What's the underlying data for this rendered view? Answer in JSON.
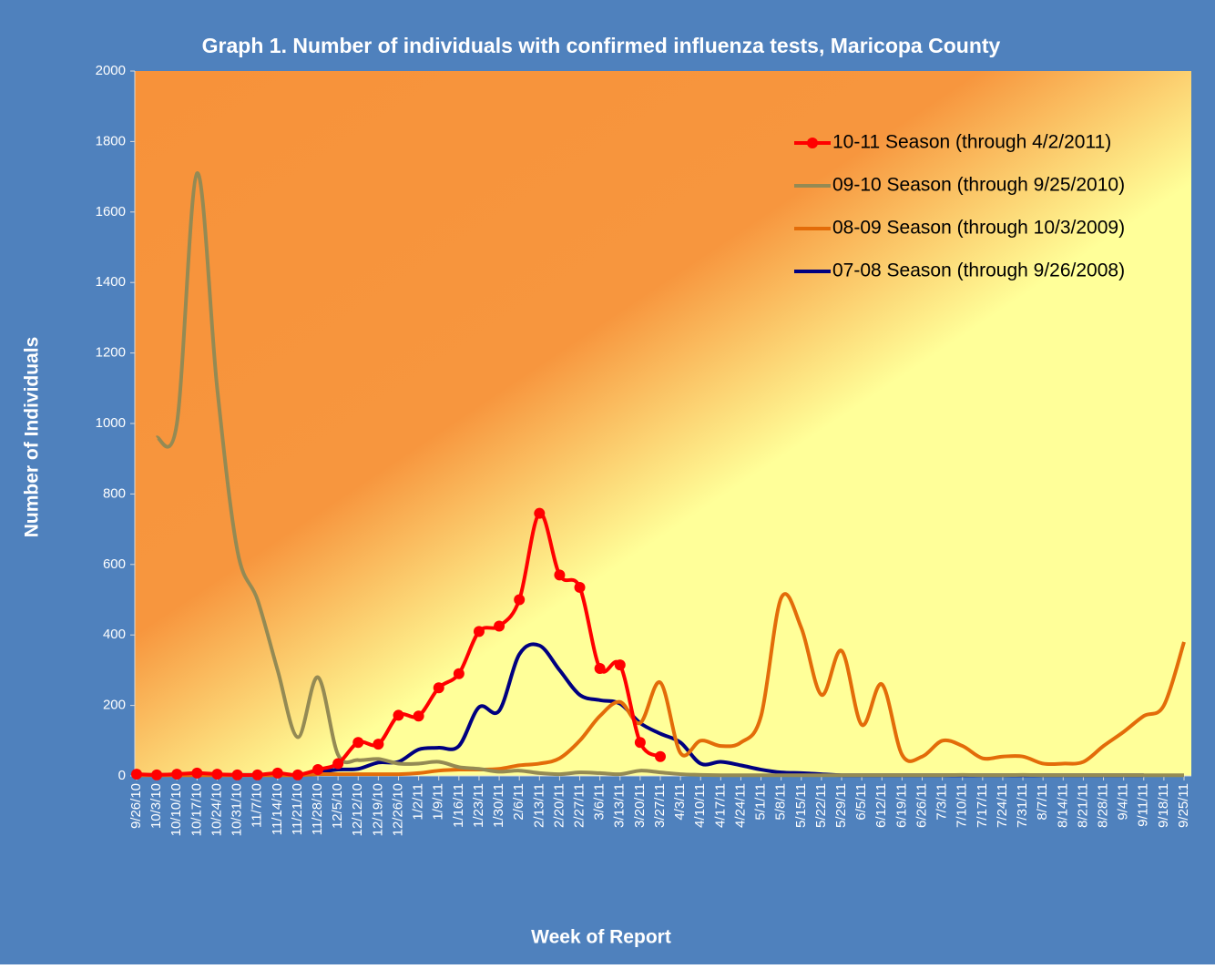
{
  "chart_data": {
    "type": "line",
    "title": "Graph 1. Number of individuals with confirmed influenza tests, Maricopa County",
    "x_label": "Week of Report",
    "y_label": "Number of Individuals",
    "categories": [
      "9/26/10",
      "10/3/10",
      "10/10/10",
      "10/17/10",
      "10/24/10",
      "10/31/10",
      "11/7/10",
      "11/14/10",
      "11/21/10",
      "11/28/10",
      "12/5/10",
      "12/12/10",
      "12/19/10",
      "12/26/10",
      "1/2/11",
      "1/9/11",
      "1/16/11",
      "1/23/11",
      "1/30/11",
      "2/6/11",
      "2/13/11",
      "2/20/11",
      "2/27/11",
      "3/6/11",
      "3/13/11",
      "3/20/11",
      "3/27/11",
      "4/3/11",
      "4/10/11",
      "4/17/11",
      "4/24/11",
      "5/1/11",
      "5/8/11",
      "5/15/11",
      "5/22/11",
      "5/29/11",
      "6/5/11",
      "6/12/11",
      "6/19/11",
      "6/26/11",
      "7/3/11",
      "7/10/11",
      "7/17/11",
      "7/24/11",
      "7/31/11",
      "8/7/11",
      "8/14/11",
      "8/21/11",
      "8/28/11",
      "9/4/11",
      "9/11/11",
      "9/18/11",
      "9/25/11"
    ],
    "series": [
      {
        "name": "10-11 Season (through 4/2/2011)",
        "color": "#ff0000",
        "markers": true,
        "values": [
          5,
          3,
          5,
          8,
          5,
          3,
          3,
          8,
          3,
          18,
          35,
          95,
          90,
          172,
          170,
          250,
          290,
          410,
          425,
          500,
          745,
          570,
          535,
          305,
          315,
          95,
          55,
          null,
          null,
          null,
          null,
          null,
          null,
          null,
          null,
          null,
          null,
          null,
          null,
          null,
          null,
          null,
          null,
          null,
          null,
          null,
          null,
          null,
          null,
          null,
          null,
          null,
          null
        ]
      },
      {
        "name": "09-10 Season (through 9/25/2010)",
        "color": "#948a54",
        "markers": false,
        "values": [
          null,
          960,
          1000,
          1710,
          1100,
          640,
          500,
          300,
          110,
          280,
          60,
          45,
          48,
          35,
          35,
          40,
          25,
          20,
          12,
          15,
          8,
          5,
          10,
          8,
          5,
          15,
          10,
          5,
          3,
          2,
          2,
          2,
          2,
          2,
          2,
          2,
          2,
          2,
          2,
          2,
          2,
          3,
          2,
          2,
          3,
          2,
          2,
          2,
          2,
          2,
          2,
          2,
          2
        ]
      },
      {
        "name": "08-09 Season (through 10/3/2009)",
        "color": "#e36c09",
        "markers": false,
        "values": [
          2,
          2,
          2,
          2,
          2,
          2,
          2,
          2,
          2,
          5,
          5,
          5,
          5,
          5,
          8,
          15,
          18,
          18,
          20,
          30,
          35,
          50,
          100,
          170,
          210,
          150,
          265,
          65,
          100,
          85,
          95,
          170,
          505,
          420,
          230,
          355,
          145,
          260,
          60,
          55,
          100,
          85,
          50,
          55,
          55,
          35,
          35,
          40,
          85,
          125,
          170,
          200,
          380
        ]
      },
      {
        "name": "07-08 Season (through 9/26/2008)",
        "color": "#000080",
        "markers": false,
        "values": [
          3,
          3,
          3,
          3,
          3,
          3,
          3,
          3,
          3,
          10,
          18,
          20,
          38,
          40,
          75,
          80,
          85,
          195,
          185,
          345,
          370,
          300,
          230,
          215,
          205,
          150,
          120,
          95,
          35,
          40,
          30,
          18,
          10,
          8,
          5,
          2,
          2,
          2,
          2,
          2,
          2,
          2,
          2,
          2,
          2,
          2,
          2,
          2,
          2,
          2,
          2,
          null,
          null
        ]
      }
    ],
    "ylim": [
      0,
      2000
    ],
    "yticks": [
      0,
      200,
      400,
      600,
      800,
      1000,
      1200,
      1400,
      1600,
      1800,
      2000
    ],
    "legend": "top-right",
    "smooth": true
  }
}
